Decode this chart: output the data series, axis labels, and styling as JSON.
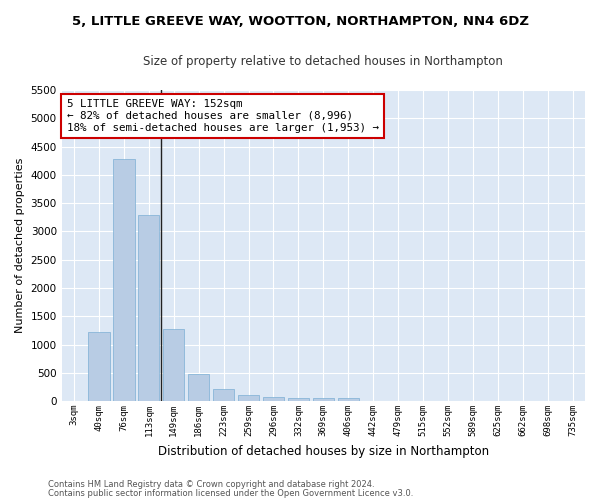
{
  "title": "5, LITTLE GREEVE WAY, WOOTTON, NORTHAMPTON, NN4 6DZ",
  "subtitle": "Size of property relative to detached houses in Northampton",
  "xlabel": "Distribution of detached houses by size in Northampton",
  "ylabel": "Number of detached properties",
  "categories": [
    "3sqm",
    "40sqm",
    "76sqm",
    "113sqm",
    "149sqm",
    "186sqm",
    "223sqm",
    "259sqm",
    "296sqm",
    "332sqm",
    "369sqm",
    "406sqm",
    "442sqm",
    "479sqm",
    "515sqm",
    "552sqm",
    "589sqm",
    "625sqm",
    "662sqm",
    "698sqm",
    "735sqm"
  ],
  "values": [
    0,
    1230,
    4280,
    3290,
    1280,
    480,
    210,
    100,
    80,
    60,
    50,
    50,
    0,
    0,
    0,
    0,
    0,
    0,
    0,
    0,
    0
  ],
  "bar_color": "#b8cce4",
  "bar_edge_color": "#7bafd4",
  "ylim_max": 5500,
  "yticks": [
    0,
    500,
    1000,
    1500,
    2000,
    2500,
    3000,
    3500,
    4000,
    4500,
    5000,
    5500
  ],
  "vline_x": 3.5,
  "annotation_text": "5 LITTLE GREEVE WAY: 152sqm\n← 82% of detached houses are smaller (8,996)\n18% of semi-detached houses are larger (1,953) →",
  "annotation_box_facecolor": "#ffffff",
  "annotation_box_edgecolor": "#cc0000",
  "footer_line1": "Contains HM Land Registry data © Crown copyright and database right 2024.",
  "footer_line2": "Contains public sector information licensed under the Open Government Licence v3.0.",
  "fig_facecolor": "#ffffff",
  "axes_facecolor": "#dde8f5",
  "grid_color": "#ffffff",
  "title_fontsize": 9.5,
  "subtitle_fontsize": 8.5,
  "ylabel_fontsize": 8,
  "xlabel_fontsize": 8.5
}
